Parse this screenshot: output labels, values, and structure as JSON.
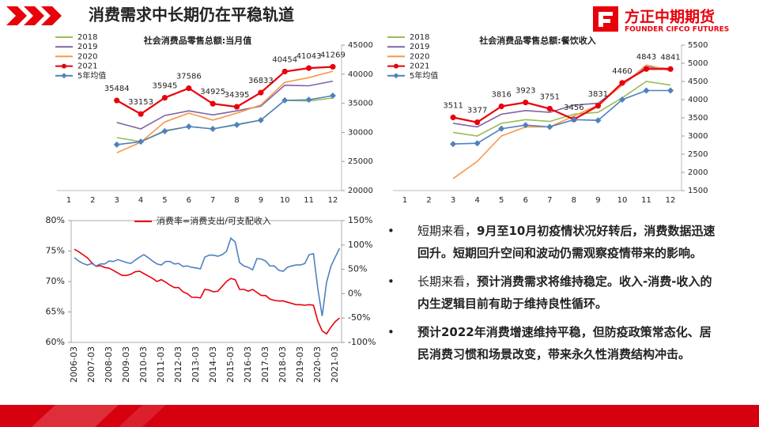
{
  "header": {
    "title": "消费需求中长期仍在平稳轨道",
    "logo_cn": "方正中期期货",
    "logo_en": "FOUNDER CIFCO FUTURES"
  },
  "chart_data": [
    {
      "type": "line",
      "title": "社会消费品零售总额:当月值",
      "categories": [
        "1",
        "2",
        "3",
        "4",
        "5",
        "6",
        "7",
        "8",
        "9",
        "10",
        "11",
        "12"
      ],
      "ylim": [
        20000,
        45000
      ],
      "yticks": [
        20000,
        25000,
        30000,
        35000,
        40000,
        45000
      ],
      "y_axis_side": "right",
      "legend": "top-left",
      "series": [
        {
          "name": "2018",
          "color": "#9bbb59",
          "values": [
            null,
            null,
            29100,
            28400,
            30300,
            31000,
            30600,
            31400,
            32100,
            35500,
            35400,
            35900
          ]
        },
        {
          "name": "2019",
          "color": "#8064a2",
          "values": [
            null,
            null,
            31700,
            30600,
            32900,
            33700,
            33000,
            33700,
            34500,
            38100,
            38000,
            38800
          ]
        },
        {
          "name": "2020",
          "color": "#f79646",
          "values": [
            null,
            null,
            26500,
            28300,
            31800,
            33300,
            32100,
            33300,
            34700,
            38600,
            39400,
            40500
          ]
        },
        {
          "name": "2021",
          "color": "#e8000b",
          "marker": "circle",
          "data_labels": true,
          "values": [
            null,
            null,
            35484,
            33153,
            35945,
            37586,
            34925,
            34395,
            36833,
            40454,
            41043,
            41269
          ]
        },
        {
          "name": "5年均值",
          "color": "#4f81bd",
          "marker": "diamond",
          "values": [
            null,
            null,
            27900,
            28400,
            30200,
            31000,
            30600,
            31300,
            32100,
            35500,
            35600,
            36300
          ]
        }
      ]
    },
    {
      "type": "line",
      "title": "社会消费品零售总额:餐饮收入",
      "categories": [
        "1",
        "2",
        "3",
        "4",
        "5",
        "6",
        "7",
        "8",
        "9",
        "10",
        "11",
        "12"
      ],
      "ylim": [
        1500,
        5500
      ],
      "yticks": [
        1500,
        2000,
        2500,
        3000,
        3500,
        4000,
        4500,
        5000,
        5500
      ],
      "y_axis_side": "right",
      "legend": "top-left",
      "series": [
        {
          "name": "2018",
          "color": "#9bbb59",
          "values": [
            null,
            null,
            3100,
            3000,
            3350,
            3450,
            3400,
            3600,
            3650,
            4050,
            4500,
            4400
          ]
        },
        {
          "name": "2019",
          "color": "#8064a2",
          "values": [
            null,
            null,
            3350,
            3250,
            3600,
            3700,
            3650,
            3850,
            3900,
            4400,
            4900,
            4850
          ]
        },
        {
          "name": "2020",
          "color": "#f79646",
          "values": [
            null,
            null,
            1830,
            2300,
            3000,
            3250,
            3250,
            3550,
            3850,
            4400,
            4950,
            4800
          ]
        },
        {
          "name": "2021",
          "color": "#e8000b",
          "marker": "circle",
          "data_labels": true,
          "values": [
            null,
            null,
            3511,
            3377,
            3816,
            3923,
            3751,
            3456,
            3831,
            4460,
            4843,
            4841
          ]
        },
        {
          "name": "5年均值",
          "color": "#4f81bd",
          "marker": "diamond",
          "values": [
            null,
            null,
            2780,
            2800,
            3200,
            3300,
            3250,
            3450,
            3430,
            4000,
            4250,
            4250
          ]
        }
      ]
    },
    {
      "type": "line",
      "legend": "top",
      "categories": [
        "2006-03",
        null,
        null,
        null,
        "2007-03",
        null,
        null,
        null,
        "2008-03",
        null,
        null,
        null,
        "2009-03",
        null,
        null,
        null,
        "2010-03",
        null,
        null,
        null,
        "2011-03",
        null,
        null,
        null,
        "2012-03",
        null,
        null,
        null,
        "2013-03",
        null,
        null,
        null,
        "2014-03",
        null,
        null,
        null,
        "2015-03",
        null,
        null,
        null,
        "2016-03",
        null,
        null,
        null,
        "2017-03",
        null,
        null,
        null,
        "2018-03",
        null,
        null,
        null,
        "2019-03",
        null,
        null,
        null,
        "2020-03",
        null,
        null,
        null,
        "2021-03",
        null
      ],
      "ylim": [
        60,
        80
      ],
      "yticks": [
        {
          "value": 60,
          "label": "60%"
        },
        {
          "value": 65,
          "label": "65%"
        },
        {
          "value": 70,
          "label": "70%"
        },
        {
          "value": 75,
          "label": "75%"
        },
        {
          "value": 80,
          "label": "80%"
        }
      ],
      "y2lim": [
        -100,
        150
      ],
      "y2ticks": [
        {
          "value": -100,
          "label": "-100%"
        },
        {
          "value": -50,
          "label": "-50%"
        },
        {
          "value": 0,
          "label": "0%"
        },
        {
          "value": 50,
          "label": "50%"
        },
        {
          "value": 100,
          "label": "100%"
        },
        {
          "value": 150,
          "label": "150%"
        }
      ],
      "series": [
        {
          "name": "消费率=消费支出/可支配收入",
          "color": "#e8000b",
          "values": [
            75.3,
            74.9,
            74.4,
            73.9,
            73.1,
            72.5,
            72.6,
            72.3,
            72.2,
            71.8,
            71.4,
            71.0,
            71.0,
            71.2,
            71.6,
            71.7,
            71.3,
            70.9,
            70.5,
            70.0,
            70.3,
            69.9,
            69.4,
            69.0,
            69.0,
            68.3,
            68.0,
            67.4,
            67.4,
            67.3,
            68.7,
            68.6,
            68.3,
            68.4,
            69.2,
            70.0,
            70.5,
            70.3,
            68.7,
            68.7,
            68.4,
            68.7,
            68.2,
            67.7,
            67.7,
            67.1,
            66.9,
            66.8,
            66.8,
            66.6,
            66.4,
            66.2,
            66.2,
            66.1,
            66.2,
            66.1,
            63.5,
            61.9,
            61.4,
            62.5,
            63.4,
            64.0
          ]
        },
        {
          "color": "#4f81bd",
          "axis": "y2",
          "values": [
            74,
            67,
            62,
            59,
            62,
            57,
            61,
            61,
            67,
            66,
            70,
            67,
            64,
            62,
            69,
            75,
            80,
            74,
            67,
            61,
            59,
            66,
            66,
            61,
            62,
            56,
            57,
            54,
            53,
            51,
            75,
            79,
            79,
            77,
            80,
            87,
            114,
            106,
            64,
            57,
            54,
            49,
            72,
            71,
            67,
            57,
            57,
            48,
            46,
            54,
            57,
            59,
            59,
            62,
            80,
            82,
            10,
            -46,
            23,
            56,
            75,
            93
          ]
        }
      ]
    }
  ],
  "bullets": [
    {
      "lead": "短期来看，",
      "bold": "9月至10月初疫情状况好转后，消费数据迅速回升。短期回升空间和波动仍需观察疫情带来的影响。"
    },
    {
      "lead": "长期来看，",
      "bold": "预计消费需求将维持稳定。收入-消费-收入的内生逻辑目前有助于维持良性循环。"
    },
    {
      "bold": "预计2022年消费增速维持平稳，但防疫政策常态化、居民消费习惯和场景改变，带来永久性消费结构冲击。"
    }
  ]
}
